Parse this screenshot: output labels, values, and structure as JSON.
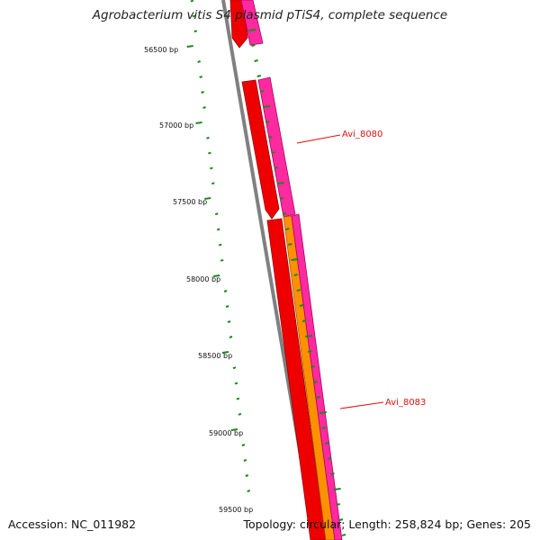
{
  "header": {
    "title": "Agrobacterium vitis S4 plasmid pTiS4, complete sequence"
  },
  "footer": {
    "accession": "Accession: NC_011982",
    "summary": "Topology: circular; Length: 258,824 bp; Genes: 205"
  },
  "map": {
    "ruler_labels": [
      "56500 bp",
      "57000 bp",
      "57500 bp",
      "58000 bp",
      "58500 bp",
      "59000 bp",
      "59500 bp"
    ],
    "feature_labels": [
      "Avi_8080",
      "Avi_8083"
    ],
    "colors": {
      "backbone": "#808080",
      "ruler_ticks": "#1a8a1a",
      "cds_red": "#ee0000",
      "cds_pink": "#ff2aa0",
      "cds_orange": "#ff9000",
      "label": "#dd1111"
    }
  }
}
